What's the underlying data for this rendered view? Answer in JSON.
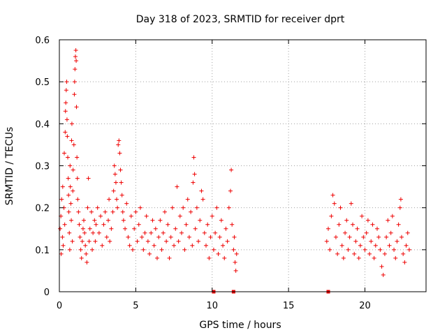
{
  "chart_data": {
    "type": "scatter",
    "title": "Day 318 of 2023, SRMTID for receiver dprt",
    "xlabel": "GPS time / hours",
    "ylabel": "SRMTID / TECUs",
    "xlim": [
      0,
      24
    ],
    "ylim": [
      0,
      0.6
    ],
    "xticks": [
      0,
      5,
      10,
      15,
      20
    ],
    "xtick_labels": [
      "0",
      "5",
      "10",
      "15",
      "20"
    ],
    "yticks": [
      0,
      0.1,
      0.2,
      0.3,
      0.4,
      0.5,
      0.6
    ],
    "ytick_labels": [
      "0",
      "0.1",
      "0.2",
      "0.3",
      "0.4",
      "0.5",
      "0.6"
    ],
    "grid": true,
    "marker": "+",
    "color": "#ee0000",
    "series": [
      {
        "name": "SRMTID",
        "points": [
          [
            0.05,
            0.15
          ],
          [
            0.1,
            0.18
          ],
          [
            0.12,
            0.09
          ],
          [
            0.15,
            0.22
          ],
          [
            0.2,
            0.13
          ],
          [
            0.22,
            0.25
          ],
          [
            0.25,
            0.11
          ],
          [
            0.3,
            0.2
          ],
          [
            0.32,
            0.33
          ],
          [
            0.35,
            0.16
          ],
          [
            0.38,
            0.38
          ],
          [
            0.4,
            0.43
          ],
          [
            0.42,
            0.45
          ],
          [
            0.45,
            0.48
          ],
          [
            0.48,
            0.5
          ],
          [
            0.5,
            0.41
          ],
          [
            0.52,
            0.37
          ],
          [
            0.55,
            0.32
          ],
          [
            0.58,
            0.27
          ],
          [
            0.6,
            0.23
          ],
          [
            0.62,
            0.19
          ],
          [
            0.65,
            0.14
          ],
          [
            0.68,
            0.1
          ],
          [
            0.7,
            0.3
          ],
          [
            0.72,
            0.25
          ],
          [
            0.75,
            0.21
          ],
          [
            0.78,
            0.17
          ],
          [
            0.8,
            0.36
          ],
          [
            0.82,
            0.4
          ],
          [
            0.85,
            0.12
          ],
          [
            0.88,
            0.24
          ],
          [
            0.9,
            0.29
          ],
          [
            0.95,
            0.35
          ],
          [
            0.98,
            0.47
          ],
          [
            1.0,
            0.5
          ],
          [
            1.02,
            0.53
          ],
          [
            1.05,
            0.56
          ],
          [
            1.08,
            0.575
          ],
          [
            1.1,
            0.55
          ],
          [
            1.12,
            0.44
          ],
          [
            1.15,
            0.32
          ],
          [
            1.18,
            0.27
          ],
          [
            1.2,
            0.22
          ],
          [
            1.25,
            0.19
          ],
          [
            1.3,
            0.16
          ],
          [
            1.35,
            0.13
          ],
          [
            1.4,
            0.1
          ],
          [
            1.45,
            0.08
          ],
          [
            1.5,
            0.12
          ],
          [
            1.55,
            0.15
          ],
          [
            1.6,
            0.17
          ],
          [
            1.65,
            0.14
          ],
          [
            1.7,
            0.11
          ],
          [
            1.75,
            0.09
          ],
          [
            1.8,
            0.07
          ],
          [
            1.85,
            0.2
          ],
          [
            1.9,
            0.27
          ],
          [
            1.95,
            0.12
          ],
          [
            2.0,
            0.15
          ],
          [
            2.1,
            0.19
          ],
          [
            2.15,
            0.1
          ],
          [
            2.2,
            0.14
          ],
          [
            2.3,
            0.17
          ],
          [
            2.35,
            0.12
          ],
          [
            2.4,
            0.16
          ],
          [
            2.5,
            0.2
          ],
          [
            2.6,
            0.14
          ],
          [
            2.7,
            0.18
          ],
          [
            2.8,
            0.11
          ],
          [
            2.9,
            0.16
          ],
          [
            3.0,
            0.19
          ],
          [
            3.1,
            0.13
          ],
          [
            3.2,
            0.17
          ],
          [
            3.25,
            0.22
          ],
          [
            3.3,
            0.12
          ],
          [
            3.4,
            0.15
          ],
          [
            3.5,
            0.19
          ],
          [
            3.55,
            0.24
          ],
          [
            3.6,
            0.3
          ],
          [
            3.65,
            0.28
          ],
          [
            3.7,
            0.26
          ],
          [
            3.75,
            0.22
          ],
          [
            3.8,
            0.2
          ],
          [
            3.85,
            0.35
          ],
          [
            3.9,
            0.36
          ],
          [
            3.95,
            0.33
          ],
          [
            4.0,
            0.29
          ],
          [
            4.05,
            0.26
          ],
          [
            4.1,
            0.23
          ],
          [
            4.15,
            0.19
          ],
          [
            4.2,
            0.17
          ],
          [
            4.3,
            0.15
          ],
          [
            4.4,
            0.21
          ],
          [
            4.5,
            0.13
          ],
          [
            4.6,
            0.11
          ],
          [
            4.7,
            0.18
          ],
          [
            4.8,
            0.1
          ],
          [
            4.9,
            0.15
          ],
          [
            5.0,
            0.19
          ],
          [
            5.1,
            0.12
          ],
          [
            5.2,
            0.16
          ],
          [
            5.3,
            0.2
          ],
          [
            5.4,
            0.13
          ],
          [
            5.5,
            0.1
          ],
          [
            5.6,
            0.14
          ],
          [
            5.7,
            0.18
          ],
          [
            5.8,
            0.12
          ],
          [
            5.9,
            0.09
          ],
          [
            6.0,
            0.14
          ],
          [
            6.1,
            0.17
          ],
          [
            6.2,
            0.11
          ],
          [
            6.3,
            0.15
          ],
          [
            6.4,
            0.08
          ],
          [
            6.5,
            0.13
          ],
          [
            6.6,
            0.17
          ],
          [
            6.7,
            0.1
          ],
          [
            6.8,
            0.14
          ],
          [
            6.9,
            0.19
          ],
          [
            7.0,
            0.12
          ],
          [
            7.1,
            0.16
          ],
          [
            7.2,
            0.08
          ],
          [
            7.3,
            0.13
          ],
          [
            7.4,
            0.2
          ],
          [
            7.5,
            0.11
          ],
          [
            7.6,
            0.15
          ],
          [
            7.7,
            0.25
          ],
          [
            7.8,
            0.12
          ],
          [
            7.9,
            0.18
          ],
          [
            8.0,
            0.14
          ],
          [
            8.1,
            0.2
          ],
          [
            8.2,
            0.1
          ],
          [
            8.3,
            0.16
          ],
          [
            8.4,
            0.22
          ],
          [
            8.5,
            0.13
          ],
          [
            8.6,
            0.19
          ],
          [
            8.7,
            0.11
          ],
          [
            8.75,
            0.26
          ],
          [
            8.8,
            0.32
          ],
          [
            8.85,
            0.28
          ],
          [
            8.9,
            0.15
          ],
          [
            9.0,
            0.2
          ],
          [
            9.1,
            0.12
          ],
          [
            9.2,
            0.17
          ],
          [
            9.3,
            0.24
          ],
          [
            9.4,
            0.22
          ],
          [
            9.5,
            0.14
          ],
          [
            9.6,
            0.11
          ],
          [
            9.7,
            0.16
          ],
          [
            9.8,
            0.08
          ],
          [
            9.9,
            0.13
          ],
          [
            10.0,
            0.18
          ],
          [
            10.1,
            0.1
          ],
          [
            10.2,
            0.14
          ],
          [
            10.3,
            0.2
          ],
          [
            10.4,
            0.09
          ],
          [
            10.5,
            0.13
          ],
          [
            10.6,
            0.17
          ],
          [
            10.7,
            0.11
          ],
          [
            10.8,
            0.08
          ],
          [
            10.9,
            0.15
          ],
          [
            11.0,
            0.12
          ],
          [
            11.1,
            0.2
          ],
          [
            11.2,
            0.24
          ],
          [
            11.25,
            0.29
          ],
          [
            11.3,
            0.16
          ],
          [
            11.4,
            0.1
          ],
          [
            11.45,
            0.13
          ],
          [
            11.5,
            0.07
          ],
          [
            11.55,
            0.05
          ],
          [
            11.6,
            0.09
          ],
          [
            17.5,
            0.12
          ],
          [
            17.6,
            0.15
          ],
          [
            17.7,
            0.1
          ],
          [
            17.8,
            0.18
          ],
          [
            17.9,
            0.23
          ],
          [
            18.0,
            0.21
          ],
          [
            18.1,
            0.13
          ],
          [
            18.2,
            0.09
          ],
          [
            18.3,
            0.16
          ],
          [
            18.4,
            0.2
          ],
          [
            18.5,
            0.11
          ],
          [
            18.6,
            0.08
          ],
          [
            18.7,
            0.14
          ],
          [
            18.8,
            0.17
          ],
          [
            18.9,
            0.1
          ],
          [
            19.0,
            0.13
          ],
          [
            19.1,
            0.21
          ],
          [
            19.2,
            0.16
          ],
          [
            19.3,
            0.09
          ],
          [
            19.4,
            0.12
          ],
          [
            19.5,
            0.15
          ],
          [
            19.6,
            0.08
          ],
          [
            19.7,
            0.11
          ],
          [
            19.8,
            0.18
          ],
          [
            19.9,
            0.13
          ],
          [
            20.0,
            0.1
          ],
          [
            20.1,
            0.14
          ],
          [
            20.2,
            0.17
          ],
          [
            20.3,
            0.09
          ],
          [
            20.4,
            0.12
          ],
          [
            20.5,
            0.16
          ],
          [
            20.6,
            0.08
          ],
          [
            20.7,
            0.11
          ],
          [
            20.8,
            0.15
          ],
          [
            20.9,
            0.13
          ],
          [
            21.0,
            0.1
          ],
          [
            21.1,
            0.06
          ],
          [
            21.2,
            0.04
          ],
          [
            21.3,
            0.09
          ],
          [
            21.4,
            0.13
          ],
          [
            21.5,
            0.17
          ],
          [
            21.6,
            0.11
          ],
          [
            21.7,
            0.14
          ],
          [
            21.8,
            0.18
          ],
          [
            21.9,
            0.1
          ],
          [
            22.0,
            0.08
          ],
          [
            22.1,
            0.12
          ],
          [
            22.2,
            0.16
          ],
          [
            22.3,
            0.2
          ],
          [
            22.35,
            0.22
          ],
          [
            22.4,
            0.13
          ],
          [
            22.5,
            0.09
          ],
          [
            22.6,
            0.07
          ],
          [
            22.7,
            0.11
          ],
          [
            22.8,
            0.14
          ],
          [
            22.9,
            0.1
          ]
        ]
      }
    ],
    "zero_markers_x": [
      10.1,
      11.4,
      17.6
    ]
  }
}
